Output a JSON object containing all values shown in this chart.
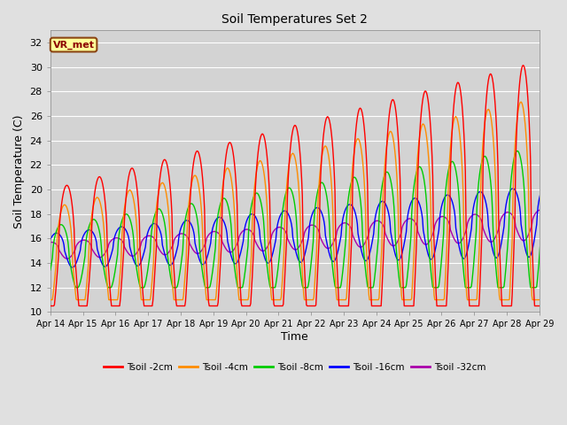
{
  "title": "Soil Temperatures Set 2",
  "xlabel": "Time",
  "ylabel": "Soil Temperature (C)",
  "ylim": [
    10,
    33
  ],
  "yticks": [
    10,
    12,
    14,
    16,
    18,
    20,
    22,
    24,
    26,
    28,
    30,
    32
  ],
  "xtick_labels": [
    "Apr 14",
    "Apr 15",
    "Apr 16",
    "Apr 17",
    "Apr 18",
    "Apr 19",
    "Apr 20",
    "Apr 21",
    "Apr 22",
    "Apr 23",
    "Apr 24",
    "Apr 25",
    "Apr 26",
    "Apr 27",
    "Apr 28",
    "Apr 29"
  ],
  "annotation": "VR_met",
  "bg_color": "#e0e0e0",
  "plot_bg_color": "#d3d3d3",
  "legend_entries": [
    "Tsoil -2cm",
    "Tsoil -4cm",
    "Tsoil -8cm",
    "Tsoil -16cm",
    "Tsoil -32cm"
  ],
  "line_colors": [
    "#ff0000",
    "#ff8c00",
    "#00cc00",
    "#0000ff",
    "#aa00aa"
  ],
  "line_widths": [
    1.0,
    1.0,
    1.0,
    1.0,
    1.0
  ]
}
